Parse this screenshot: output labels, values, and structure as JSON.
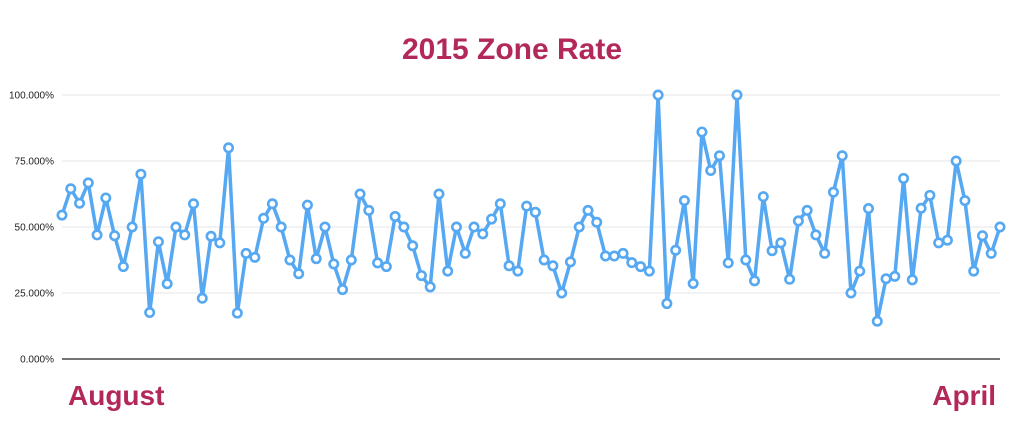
{
  "colors": {
    "title": "#b3285a",
    "series": "#55a8f1",
    "marker_fill": "#ffffff",
    "grid": "#e6e6e6",
    "axis": "#222222",
    "xlabel": "#b3285a"
  },
  "chart_data": {
    "type": "line",
    "title": "2015 Zone Rate",
    "x_start_label": "August",
    "x_end_label": "April",
    "ylabel": "",
    "ylim": [
      0,
      100
    ],
    "yticks": [
      {
        "value": 0,
        "label": "0.000%"
      },
      {
        "value": 25,
        "label": "25.000%"
      },
      {
        "value": 50,
        "label": "50.000%"
      },
      {
        "value": 75,
        "label": "75.000%"
      },
      {
        "value": 100,
        "label": "100.000%"
      }
    ],
    "grid": true,
    "series": [
      {
        "values": [
          54.5,
          64.5,
          59,
          66.7,
          47,
          61,
          46.7,
          35,
          50,
          70,
          17.6,
          44.4,
          28.5,
          50,
          47,
          58.8,
          23,
          46.5,
          44,
          80,
          17.4,
          40,
          38.5,
          53.3,
          58.8,
          50,
          37.5,
          32.3,
          58.3,
          38,
          50,
          36,
          26.3,
          37.5,
          62.5,
          56.3,
          36.4,
          35,
          54,
          50,
          42.9,
          31.6,
          27.3,
          62.5,
          33.3,
          50,
          40,
          50,
          47.4,
          53,
          58.8,
          35.3,
          33.3,
          57.9,
          55.6,
          37.5,
          35.3,
          25,
          36.8,
          50,
          56.3,
          51.8,
          39,
          39,
          40,
          36.5,
          35,
          33.3,
          100,
          21,
          41.2,
          60,
          28.6,
          86,
          71.4,
          77,
          36.4,
          100,
          37.5,
          29.6,
          61.5,
          41,
          44,
          30.2,
          52.3,
          56.3,
          47,
          40,
          63.2,
          77,
          25,
          33.3,
          57,
          14.3,
          30.4,
          31.3,
          68.4,
          30,
          57.1,
          62,
          44,
          45,
          75,
          60,
          33.3,
          46.7,
          40,
          50
        ]
      }
    ]
  }
}
